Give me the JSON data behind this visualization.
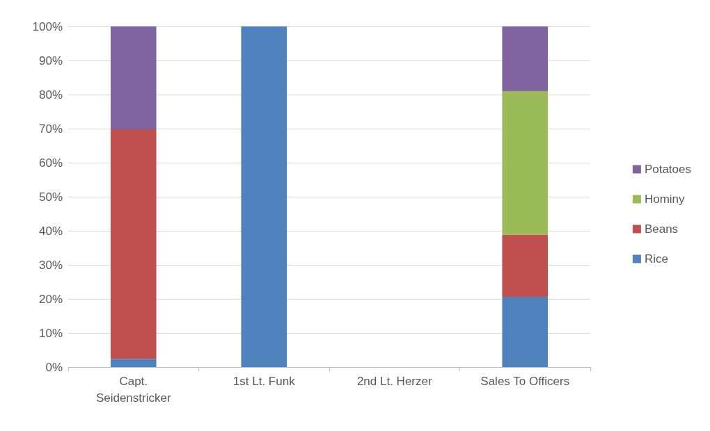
{
  "chart_data": {
    "type": "bar",
    "stacked": true,
    "categories": [
      "Capt.\nSeidenstricker",
      "1st Lt. Funk",
      "2nd Lt. Herzer",
      "Sales To Officers"
    ],
    "series": [
      {
        "name": "Rice",
        "color": "#4f81bd",
        "values": [
          2.4,
          100,
          null,
          20.6
        ]
      },
      {
        "name": "Beans",
        "color": "#c0504d",
        "values": [
          67.4,
          0,
          null,
          18.3
        ]
      },
      {
        "name": "Hominy",
        "color": "#9bbb59",
        "values": [
          0,
          0,
          null,
          42.1
        ]
      },
      {
        "name": "Potatoes",
        "color": "#8064a2",
        "values": [
          30.2,
          0,
          null,
          19
        ]
      }
    ],
    "ylim": [
      0,
      100
    ],
    "yticks": [
      {
        "value": 0,
        "label": "0%"
      },
      {
        "value": 10,
        "label": "10%"
      },
      {
        "value": 20,
        "label": "20%"
      },
      {
        "value": 30,
        "label": "30%"
      },
      {
        "value": 40,
        "label": "40%"
      },
      {
        "value": 50,
        "label": "50%"
      },
      {
        "value": 60,
        "label": "60%"
      },
      {
        "value": 70,
        "label": "70%"
      },
      {
        "value": 80,
        "label": "80%"
      },
      {
        "value": 90,
        "label": "90%"
      },
      {
        "value": 100,
        "label": "100%"
      }
    ],
    "grid": "y",
    "legend": "right"
  }
}
